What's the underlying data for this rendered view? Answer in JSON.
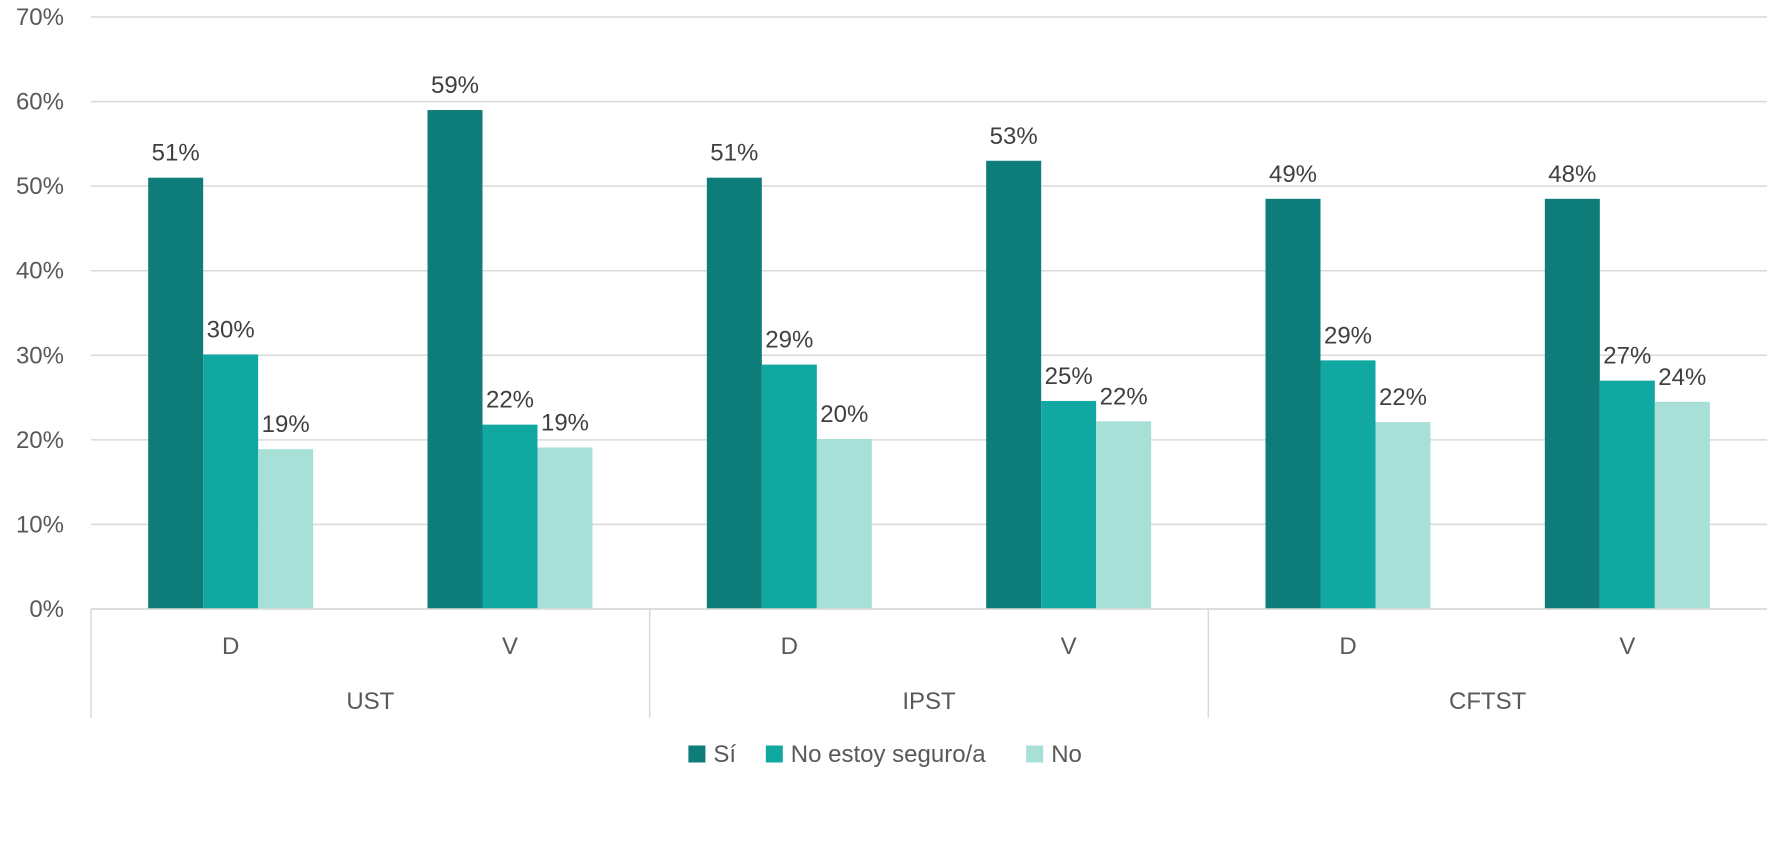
{
  "chart_data": {
    "type": "bar",
    "groups": [
      {
        "label": "UST",
        "subcategories": [
          "D",
          "V"
        ]
      },
      {
        "label": "IPST",
        "subcategories": [
          "D",
          "V"
        ]
      },
      {
        "label": "CFTST",
        "subcategories": [
          "D",
          "V"
        ]
      }
    ],
    "categories": [
      "UST D",
      "UST V",
      "IPST D",
      "IPST V",
      "CFTST D",
      "CFTST V"
    ],
    "series": [
      {
        "name": "Sí",
        "color": "#0E7C78",
        "values": [
          51,
          59,
          51,
          53,
          48.5,
          48.5
        ],
        "labels": [
          "51%",
          "59%",
          "51%",
          "53%",
          "49%",
          "48%"
        ]
      },
      {
        "name": "No estoy seguro/a",
        "color": "#12A8A2",
        "values": [
          30.1,
          21.8,
          28.9,
          24.6,
          29.4,
          27.0
        ],
        "labels": [
          "30%",
          "22%",
          "29%",
          "25%",
          "29%",
          "27%"
        ]
      },
      {
        "name": "No",
        "color": "#A8E0D8",
        "values": [
          18.9,
          19.1,
          20.1,
          22.2,
          22.1,
          24.5
        ],
        "labels": [
          "19%",
          "19%",
          "20%",
          "22%",
          "22%",
          "24%"
        ]
      }
    ],
    "ylim": [
      0,
      70
    ],
    "yticks": [
      {
        "value": 0,
        "label": "0%"
      },
      {
        "value": 10,
        "label": "10%"
      },
      {
        "value": 20,
        "label": "20%"
      },
      {
        "value": 30,
        "label": "30%"
      },
      {
        "value": 40,
        "label": "40%"
      },
      {
        "value": 50,
        "label": "50%"
      },
      {
        "value": 60,
        "label": "60%"
      },
      {
        "value": 70,
        "label": "70%"
      }
    ],
    "grid": true,
    "legend_position": "bottom",
    "title": "",
    "xlabel": "",
    "ylabel": ""
  }
}
